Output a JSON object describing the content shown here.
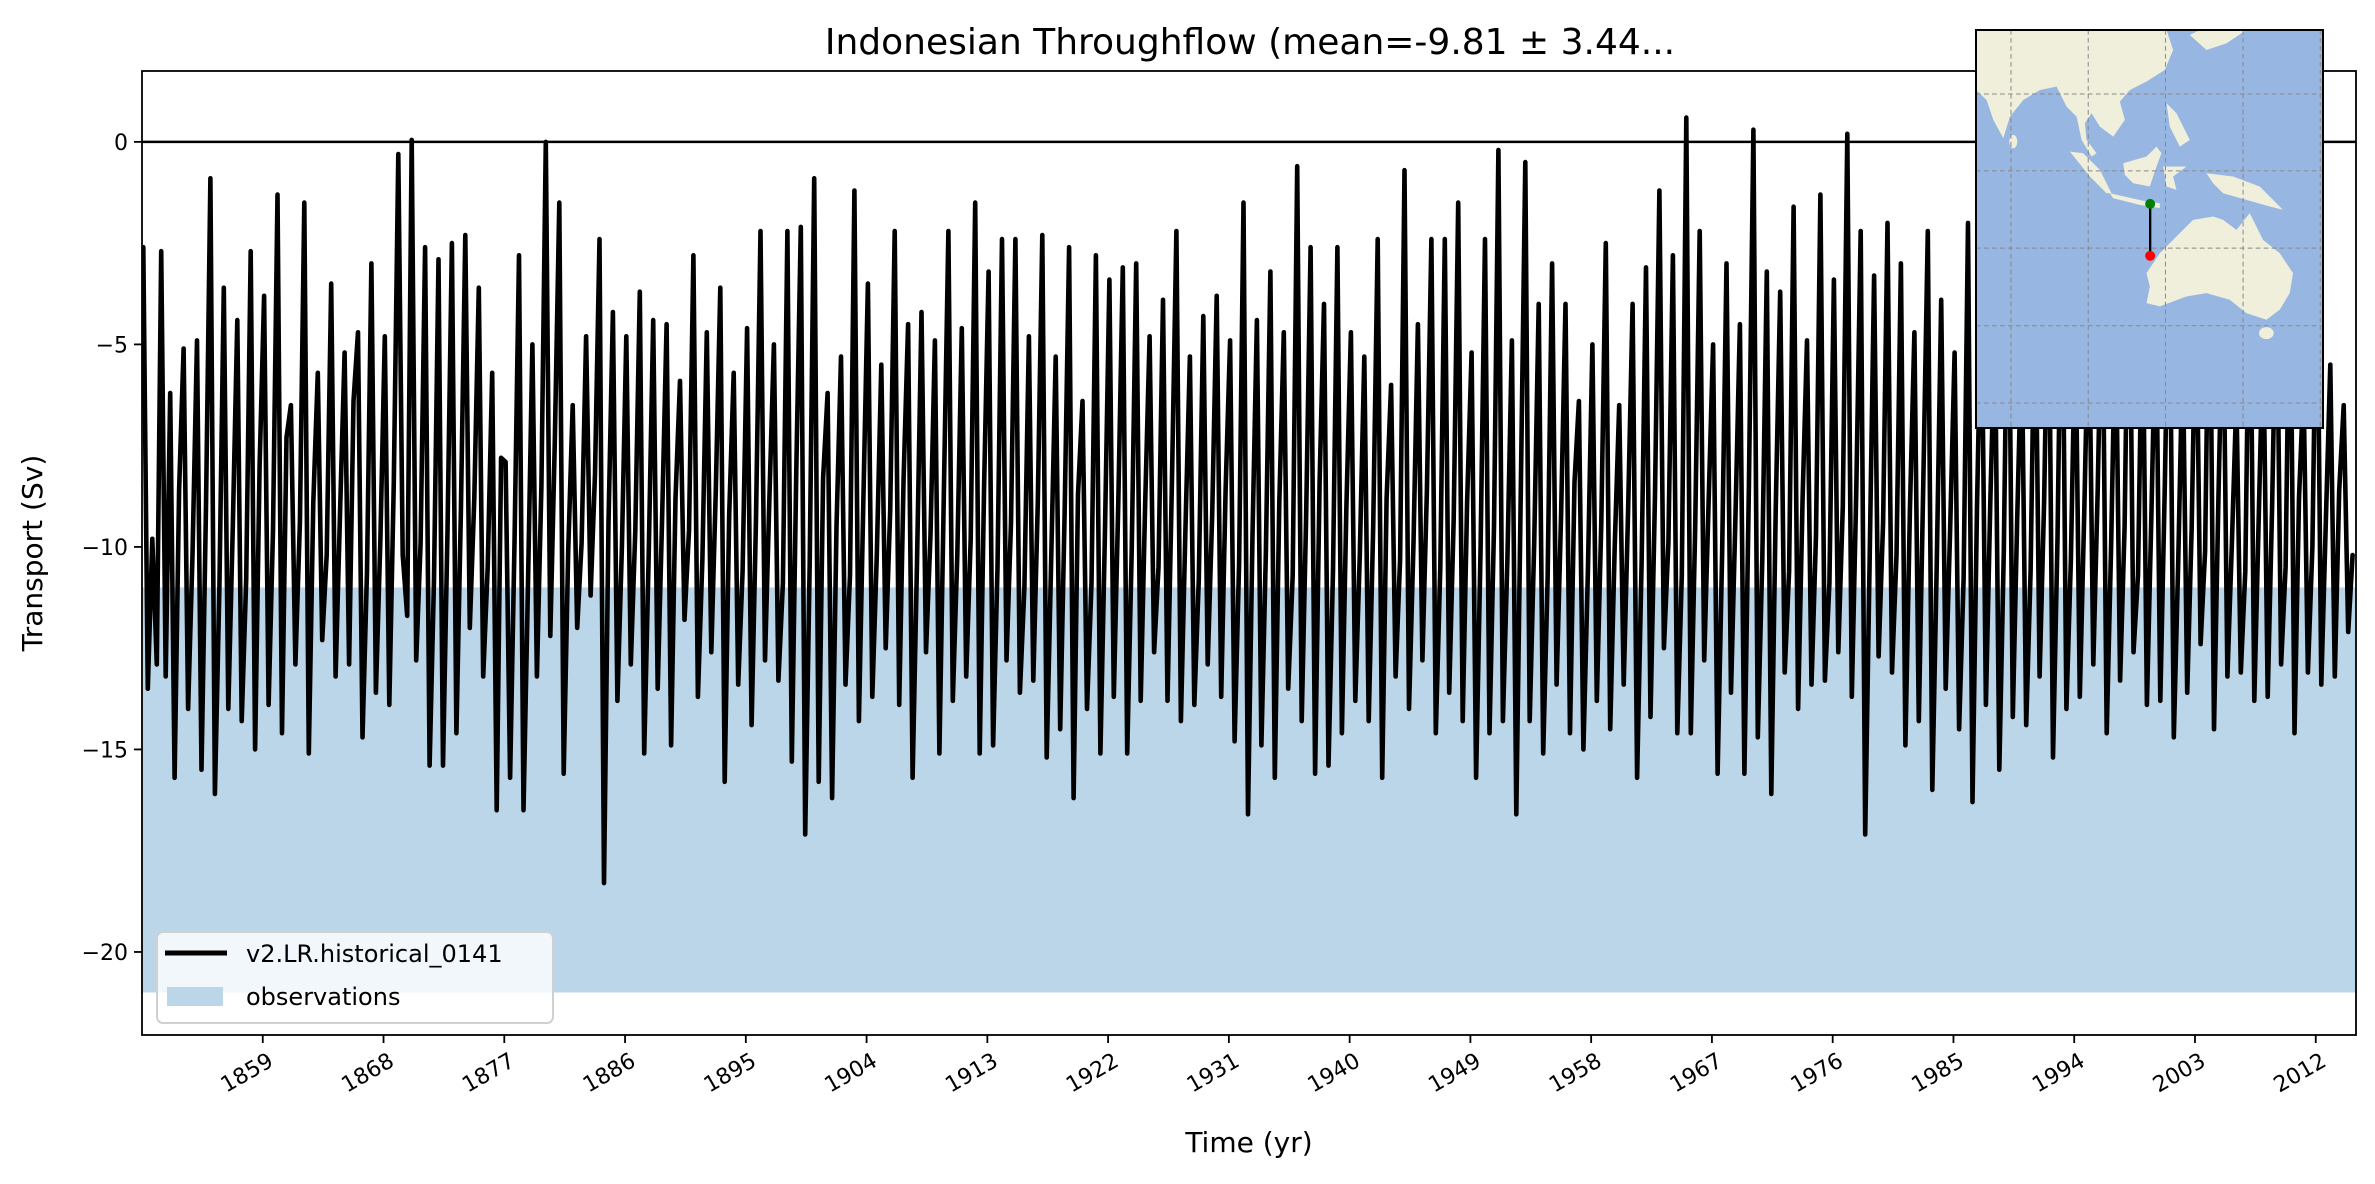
{
  "chart_data": {
    "type": "line",
    "title": "Indonesian Throughflow (mean=-9.81 ± 3.44...",
    "xlabel": "Time (yr)",
    "ylabel": "Transport (Sv)",
    "xlim": [
      1850,
      2015
    ],
    "ylim": [
      -22.05,
      1.75
    ],
    "x_start": 1850,
    "x_step": 0.3333,
    "xticks": [
      1859,
      1868,
      1877,
      1886,
      1895,
      1904,
      1913,
      1922,
      1931,
      1940,
      1949,
      1958,
      1967,
      1976,
      1985,
      1994,
      2003,
      2012
    ],
    "yticks": [
      -20,
      -15,
      -10,
      -5,
      0
    ],
    "ytick_labels": [
      "−20",
      "−15",
      "−10",
      "−5",
      "0"
    ],
    "hline": 0,
    "grid": false,
    "legend_position": "lower-left",
    "series": [
      {
        "name": "v2.LR.historical_0141",
        "color": "#000000",
        "values": [
          -2.6,
          -13.5,
          -9.8,
          -12.9,
          -2.7,
          -13.2,
          -6.2,
          -15.7,
          -8.6,
          -5.1,
          -14.0,
          -10.2,
          -4.9,
          -15.5,
          -9.0,
          -0.9,
          -16.1,
          -11.0,
          -3.6,
          -14.0,
          -9.5,
          -4.4,
          -14.3,
          -10.8,
          -2.7,
          -15.0,
          -8.0,
          -3.8,
          -13.9,
          -9.6,
          -1.3,
          -14.6,
          -7.3,
          -6.5,
          -12.9,
          -9.4,
          -1.5,
          -15.1,
          -8.9,
          -5.7,
          -12.3,
          -10.2,
          -3.5,
          -13.2,
          -9.1,
          -5.2,
          -12.9,
          -6.4,
          -4.7,
          -14.7,
          -10.6,
          -3.0,
          -13.6,
          -9.8,
          -4.8,
          -13.9,
          -8.4,
          -0.3,
          -10.2,
          -11.7,
          0.05,
          -12.8,
          -9.9,
          -2.6,
          -15.4,
          -10.8,
          -2.9,
          -15.4,
          -9.6,
          -2.5,
          -14.6,
          -9.1,
          -2.3,
          -12.0,
          -8.8,
          -3.6,
          -13.2,
          -10.5,
          -5.7,
          -16.5,
          -7.8,
          -7.9,
          -15.7,
          -9.9,
          -2.8,
          -16.5,
          -10.9,
          -5.0,
          -13.2,
          -8.5,
          0.0,
          -12.2,
          -7.4,
          -1.5,
          -15.6,
          -10.1,
          -6.5,
          -12.0,
          -9.9,
          -4.8,
          -11.2,
          -8.2,
          -2.4,
          -18.3,
          -9.4,
          -4.2,
          -13.8,
          -10.0,
          -4.8,
          -12.9,
          -9.6,
          -3.7,
          -15.1,
          -10.2,
          -4.4,
          -13.5,
          -9.3,
          -4.5,
          -14.9,
          -8.8,
          -5.9,
          -11.8,
          -9.6,
          -2.8,
          -13.7,
          -10.3,
          -4.7,
          -12.6,
          -8.6,
          -3.6,
          -15.8,
          -9.2,
          -5.7,
          -13.4,
          -10.6,
          -4.6,
          -14.4,
          -9.3,
          -2.2,
          -12.8,
          -8.7,
          -5.0,
          -13.3,
          -10.9,
          -2.2,
          -15.3,
          -8.1,
          -2.1,
          -17.1,
          -10.4,
          -0.9,
          -15.8,
          -8.3,
          -6.2,
          -16.2,
          -9.5,
          -5.3,
          -13.4,
          -10.7,
          -1.2,
          -14.3,
          -8.8,
          -3.5,
          -13.7,
          -10.2,
          -5.5,
          -12.5,
          -9.1,
          -2.2,
          -13.9,
          -8.3,
          -4.5,
          -15.7,
          -10.4,
          -4.2,
          -12.6,
          -9.7,
          -4.9,
          -15.1,
          -8.6,
          -2.2,
          -13.8,
          -10.2,
          -4.6,
          -13.2,
          -9.8,
          -1.5,
          -15.1,
          -8.5,
          -3.2,
          -14.9,
          -10.5,
          -2.4,
          -12.8,
          -9.4,
          -2.4,
          -13.6,
          -11.0,
          -4.8,
          -13.3,
          -8.9,
          -2.3,
          -15.2,
          -10.3,
          -5.3,
          -14.5,
          -9.2,
          -2.6,
          -16.2,
          -8.7,
          -6.4,
          -14.0,
          -10.9,
          -2.8,
          -15.1,
          -9.7,
          -3.4,
          -13.7,
          -8.9,
          -3.1,
          -15.1,
          -10.1,
          -3.0,
          -13.8,
          -9.0,
          -4.8,
          -12.6,
          -10.5,
          -3.9,
          -13.8,
          -8.3,
          -2.2,
          -14.3,
          -9.6,
          -5.3,
          -13.9,
          -10.8,
          -4.3,
          -12.9,
          -9.2,
          -3.8,
          -13.7,
          -8.6,
          -4.9,
          -14.8,
          -10.4,
          -1.5,
          -16.6,
          -9.7,
          -4.4,
          -14.9,
          -10.1,
          -3.2,
          -15.7,
          -8.9,
          -4.7,
          -13.5,
          -10.7,
          -0.6,
          -14.3,
          -9.3,
          -2.6,
          -15.6,
          -8.4,
          -4.0,
          -15.4,
          -10.6,
          -2.6,
          -14.6,
          -9.0,
          -4.7,
          -13.8,
          -10.2,
          -5.3,
          -14.3,
          -9.5,
          -2.4,
          -15.7,
          -8.8,
          -6.0,
          -13.2,
          -10.3,
          -0.7,
          -14.0,
          -9.9,
          -4.5,
          -12.8,
          -8.6,
          -2.4,
          -14.6,
          -10.5,
          -2.4,
          -13.6,
          -9.3,
          -1.5,
          -14.3,
          -8.9,
          -5.2,
          -15.7,
          -10.0,
          -2.4,
          -14.6,
          -9.5,
          -0.2,
          -14.3,
          -10.3,
          -4.9,
          -16.6,
          -8.6,
          -0.5,
          -14.3,
          -9.9,
          -4.0,
          -15.1,
          -10.8,
          -3.0,
          -13.4,
          -9.2,
          -4.0,
          -14.6,
          -8.4,
          -6.4,
          -15.0,
          -10.6,
          -5.0,
          -13.8,
          -9.4,
          -2.5,
          -14.5,
          -10.0,
          -6.5,
          -13.4,
          -9.1,
          -4.0,
          -15.7,
          -10.4,
          -3.1,
          -14.2,
          -8.7,
          -1.2,
          -12.5,
          -9.9,
          -2.8,
          -14.6,
          -10.7,
          0.6,
          -14.6,
          -9.5,
          -2.2,
          -12.8,
          -8.9,
          -5.0,
          -15.6,
          -10.2,
          -3.0,
          -13.6,
          -9.2,
          -4.5,
          -15.6,
          -8.5,
          0.3,
          -14.7,
          -10.3,
          -3.2,
          -16.1,
          -9.1,
          -3.7,
          -13.1,
          -10.6,
          -1.6,
          -14.0,
          -8.8,
          -4.9,
          -13.4,
          -9.7,
          -1.3,
          -13.3,
          -10.9,
          -3.4,
          -12.6,
          -9.0,
          0.2,
          -13.7,
          -8.7,
          -2.2,
          -17.1,
          -10.4,
          -3.3,
          -12.7,
          -9.4,
          -2.0,
          -13.1,
          -10.2,
          -3.0,
          -14.9,
          -9.1,
          -4.7,
          -14.3,
          -8.4,
          -2.2,
          -16.0,
          -10.5,
          -3.9,
          -13.5,
          -9.6,
          -5.2,
          -14.5,
          -10.8,
          -2.0,
          -16.3,
          -9.0,
          -3.5,
          -13.9,
          -8.8,
          -4.5,
          -15.5,
          -10.1,
          -1.5,
          -14.2,
          -9.3,
          -4.9,
          -14.4,
          -10.6,
          -3.1,
          -13.2,
          -8.9,
          -2.5,
          -15.2,
          -9.8,
          -1.9,
          -14.0,
          -10.3,
          -4.3,
          -13.7,
          -9.1,
          -3.8,
          -12.9,
          -8.6,
          -2.9,
          -14.6,
          -10.0,
          -4.1,
          -13.3,
          -9.5,
          -1.5,
          -12.6,
          -10.7,
          -3.6,
          -13.9,
          -9.2,
          -4.0,
          -13.8,
          -8.5,
          -2.2,
          -14.7,
          -10.4,
          -5.1,
          -13.6,
          -9.6,
          -3.4,
          -12.4,
          -10.1,
          -1.9,
          -14.5,
          -8.7,
          -3.5,
          -13.2,
          -9.9,
          -6.3,
          -13.1,
          -10.6,
          -2.1,
          -13.8,
          -9.3,
          -4.7,
          -13.7,
          -9.0,
          -3.0,
          -12.9,
          -10.5,
          -2.4,
          -14.6,
          -8.8,
          -6.0,
          -13.1,
          -10.0,
          -2.2,
          -13.4,
          -9.4,
          -5.5,
          -13.2,
          -8.6,
          -6.5,
          -12.1,
          -10.2
        ]
      }
    ],
    "bands": [
      {
        "name": "observations",
        "color": "#bad6e8",
        "ymin": -21,
        "ymax": -11
      }
    ]
  },
  "inset_map": {
    "ocean_color": "#97b6e1",
    "land_color": "#efefdb",
    "section_start_color": "#008000",
    "section_end_color": "#ff0000"
  }
}
